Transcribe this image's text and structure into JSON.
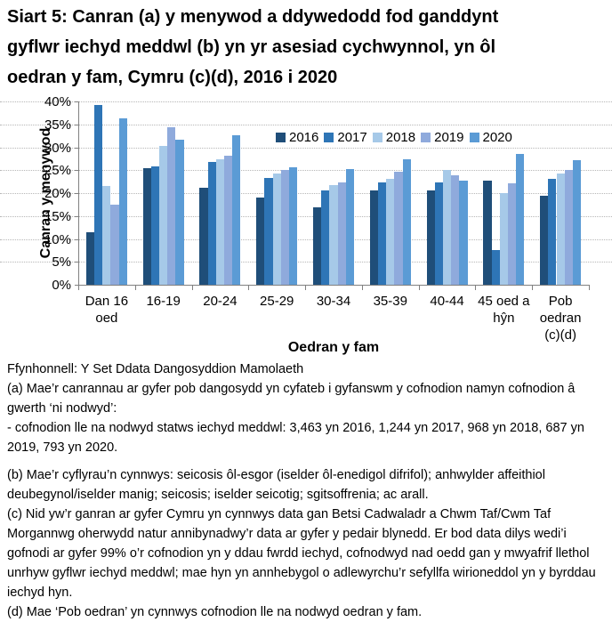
{
  "title": "Siart 5: Canran (a) y menywod a ddywedodd fod ganddynt\ngyflwr iechyd meddwl (b) yn yr asesiad cychwynnol, yn ôl\noedran y fam, Cymru (c)(d), 2016 i 2020",
  "chart_data": {
    "type": "bar",
    "categories": [
      "Dan 16\noed",
      "16-19",
      "20-24",
      "25-29",
      "30-34",
      "35-39",
      "40-44",
      "45 oed a\nhŷn",
      "Pob\noedran\n(c)(d)"
    ],
    "series": [
      {
        "name": "2016",
        "color": "#1f4e79",
        "values": [
          11.5,
          25.4,
          21.1,
          19.0,
          16.8,
          20.6,
          20.6,
          22.7,
          19.4
        ]
      },
      {
        "name": "2017",
        "color": "#2e75b6",
        "values": [
          39.3,
          25.8,
          26.7,
          23.3,
          20.5,
          22.4,
          22.3,
          7.6,
          23.1
        ]
      },
      {
        "name": "2018",
        "color": "#a6c9e8",
        "values": [
          21.6,
          30.2,
          27.3,
          24.3,
          21.8,
          23.2,
          25.0,
          20.0,
          24.3
        ]
      },
      {
        "name": "2019",
        "color": "#8faadc",
        "values": [
          17.4,
          34.3,
          28.1,
          25.0,
          22.3,
          24.6,
          23.8,
          22.2,
          25.0
        ]
      },
      {
        "name": "2020",
        "color": "#5b9bd5",
        "values": [
          36.4,
          31.7,
          32.7,
          25.7,
          25.2,
          27.3,
          22.7,
          28.6,
          27.1
        ]
      }
    ],
    "xlabel": "Oedran y fam",
    "ylabel": "Canran y menywod",
    "ylim": [
      0,
      40
    ],
    "ytick_step": 5,
    "ytick_suffix": "%",
    "grid": "horizontal-dotted",
    "legend_position": "inside-top",
    "legend_labels": [
      "2016",
      "2017",
      "2018",
      "2019",
      "2020"
    ]
  },
  "footnotes": [
    "Ffynhonnell: Y Set Ddata Dangosyddion Mamolaeth",
    "(a) Mae’r canrannau ar gyfer pob dangosydd yn cyfateb i gyfanswm y cofnodion namyn cofnodion â gwerth ‘ni nodwyd’:",
    " - cofnodion lle na nodwyd statws iechyd meddwl: 3,463 yn 2016, 1,244 yn 2017, 968 yn 2018, 687 yn 2019, 793 yn 2020.",
    "(b) Mae’r cyflyrau’n cynnwys: seicosis ôl-esgor (iselder ôl-enedigol difrifol); anhwylder affeithiol deubegynol/iselder manig; seicosis; iselder seicotig; sgitsoffrenia; ac arall.",
    "(c) Nid yw’r ganran ar gyfer Cymru yn cynnwys data gan Betsi Cadwaladr a Chwm Taf/Cwm Taf Morgannwg oherwydd natur annibynadwy’r data ar gyfer y pedair blynedd. Er bod data dilys wedi’i gofnodi ar gyfer 99% o’r cofnodion yn y ddau fwrdd iechyd, cofnodwyd nad oedd gan y mwyafrif llethol unrhyw gyflwr iechyd meddwl; mae hyn yn annhebygol o adlewyrchu’r sefyllfa wirioneddol yn y byrddau iechyd hyn.",
    "(d) Mae ‘Pob oedran’ yn cynnwys cofnodion lle na nodwyd oedran y fam."
  ]
}
